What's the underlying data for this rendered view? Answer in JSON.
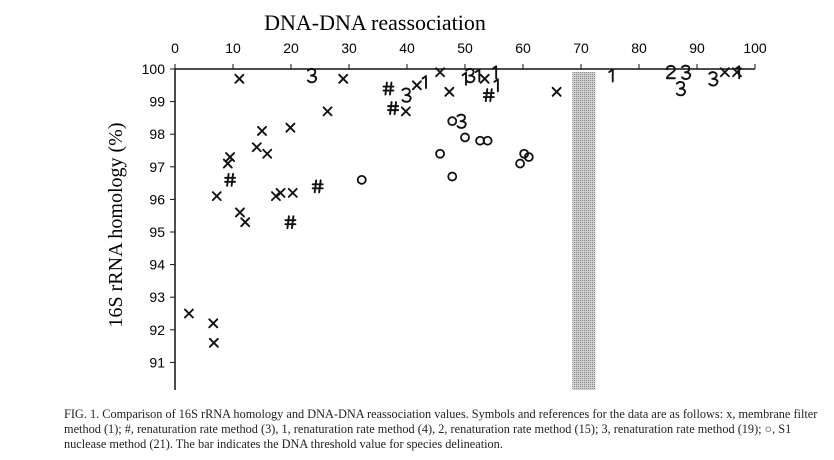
{
  "chart_data": {
    "type": "scatter",
    "title": "DNA-DNA reassociation",
    "xlabel": "DNA-DNA reassociation",
    "ylabel": "16S rRNA homology (%)",
    "xlim": [
      0,
      100
    ],
    "ylim": [
      90.2,
      100
    ],
    "x_axis_position": "top",
    "xticks": [
      0,
      10,
      20,
      30,
      40,
      50,
      60,
      70,
      80,
      90,
      100
    ],
    "yticks": [
      100,
      99,
      98,
      97,
      96,
      95,
      94,
      93,
      92,
      91
    ],
    "grid": false,
    "threshold_bar": {
      "x_from": 68.5,
      "x_to": 72.5,
      "color": "#b8b8b8"
    },
    "series": [
      {
        "name": "membrane filter method (1)",
        "symbol": "x",
        "points": [
          [
            2.4,
            92.5
          ],
          [
            6.6,
            92.2
          ],
          [
            6.7,
            91.6
          ],
          [
            11.1,
            99.7
          ],
          [
            29.0,
            99.7
          ],
          [
            26.3,
            98.7
          ],
          [
            15.0,
            98.1
          ],
          [
            19.9,
            98.2
          ],
          [
            14.1,
            97.6
          ],
          [
            15.9,
            97.4
          ],
          [
            9.5,
            97.3
          ],
          [
            9.1,
            97.1
          ],
          [
            7.2,
            96.1
          ],
          [
            17.4,
            96.1
          ],
          [
            18.2,
            96.2
          ],
          [
            20.3,
            96.2
          ],
          [
            11.2,
            95.6
          ],
          [
            12.1,
            95.3
          ],
          [
            45.7,
            99.9
          ],
          [
            41.7,
            99.5
          ],
          [
            47.3,
            99.3
          ],
          [
            39.8,
            98.7
          ],
          [
            53.4,
            99.7
          ],
          [
            65.8,
            99.3
          ],
          [
            94.8,
            99.9
          ],
          [
            96.9,
            99.9
          ]
        ]
      },
      {
        "name": "renaturation rate method (3)",
        "symbol": "#",
        "points": [
          [
            36.8,
            99.4
          ],
          [
            37.6,
            98.8
          ],
          [
            9.5,
            96.6
          ],
          [
            24.6,
            96.4
          ],
          [
            19.9,
            95.3
          ],
          [
            54.1,
            99.2
          ]
        ]
      },
      {
        "name": "renaturation rate method (4)",
        "symbol": "1",
        "points": [
          [
            43.1,
            99.6
          ],
          [
            50.0,
            99.7
          ],
          [
            52.3,
            99.8
          ],
          [
            55.2,
            99.9
          ],
          [
            55.5,
            99.5
          ],
          [
            75.3,
            99.8
          ],
          [
            97.1,
            99.9
          ]
        ]
      },
      {
        "name": "renaturation rate method (15)",
        "symbol": "2",
        "points": [
          [
            85.5,
            99.9
          ]
        ]
      },
      {
        "name": "renaturation rate method (19)",
        "symbol": "3",
        "points": [
          [
            23.6,
            99.8
          ],
          [
            39.9,
            99.2
          ],
          [
            50.9,
            99.8
          ],
          [
            49.4,
            98.4
          ],
          [
            88.1,
            99.9
          ],
          [
            87.2,
            99.4
          ],
          [
            92.8,
            99.7
          ]
        ]
      },
      {
        "name": "S1 nuclease method (21)",
        "symbol": "o",
        "points": [
          [
            32.2,
            96.6
          ],
          [
            45.7,
            97.4
          ],
          [
            47.8,
            98.4
          ],
          [
            50.0,
            97.9
          ],
          [
            52.6,
            97.8
          ],
          [
            53.9,
            97.8
          ],
          [
            47.8,
            96.7
          ],
          [
            59.5,
            97.1
          ],
          [
            60.2,
            97.4
          ],
          [
            61.0,
            97.3
          ]
        ]
      }
    ]
  },
  "caption": {
    "text": "FIG. 1. Comparison of 16S rRNA homology and DNA-DNA reassociation values. Symbols and references for the data are as follows: x, membrane filter method (1); #, renaturation rate method (3), 1, renaturation rate method (4), 2, renaturation rate method (15); 3, renaturation rate method (19); ○, S1 nuclease method (21). The bar indicates the DNA threshold value for species delineation."
  }
}
